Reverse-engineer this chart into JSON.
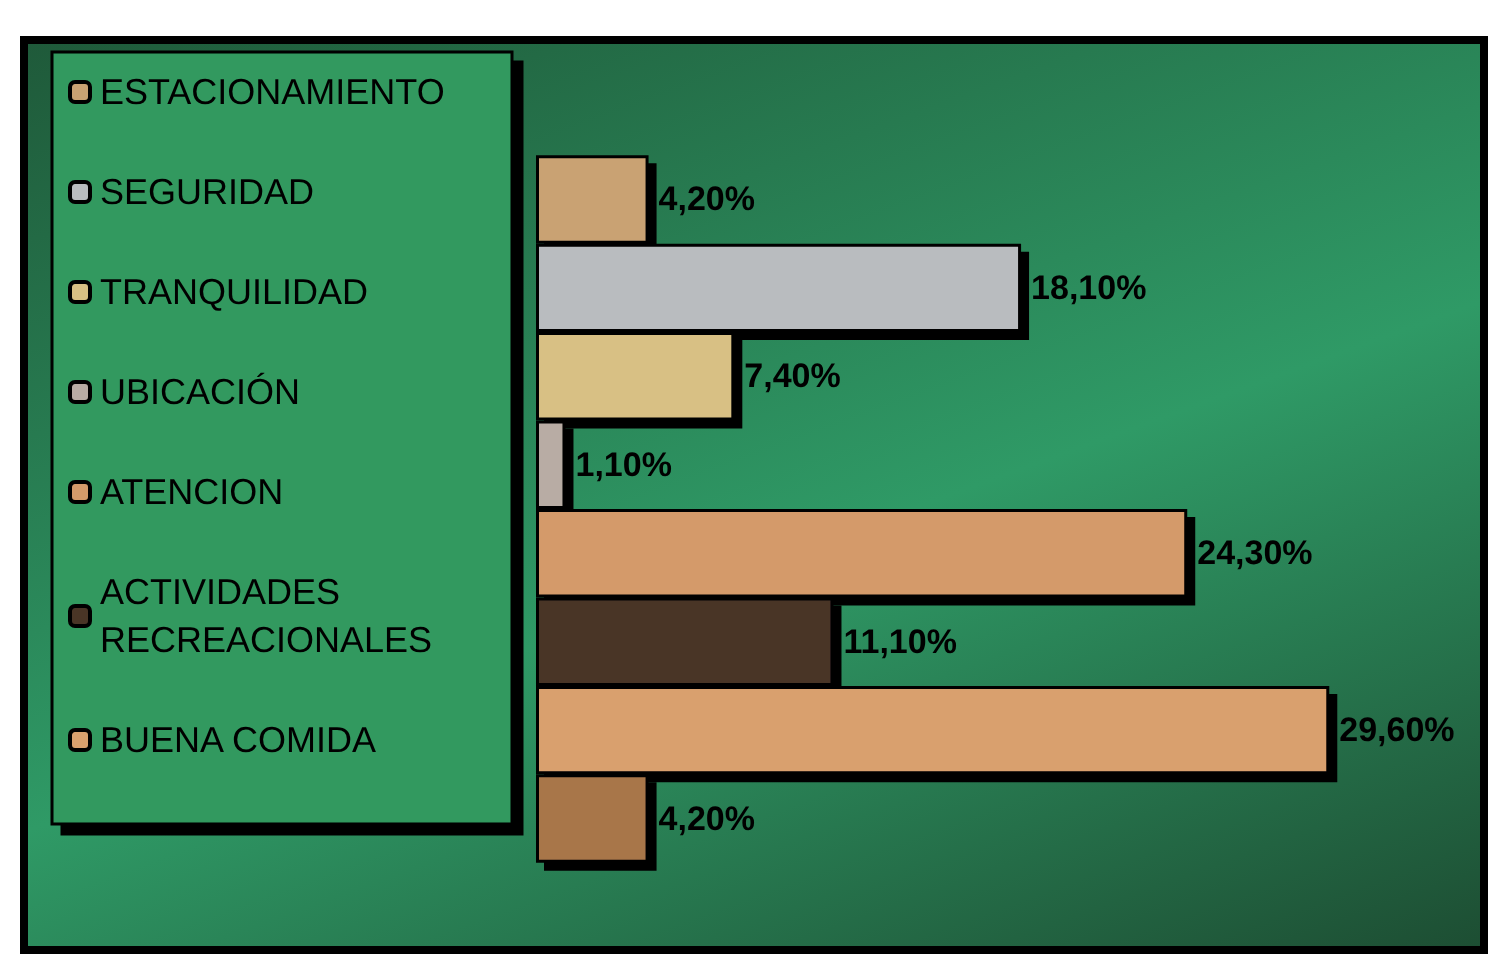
{
  "chart_data": {
    "type": "bar",
    "orientation": "horizontal",
    "legend": "left",
    "categories": [
      null
    ],
    "series": [
      {
        "name": "ESTACIONAMIENTO",
        "color": "#c9a273",
        "values": [
          4.2
        ],
        "value_labels": [
          "4,20%"
        ]
      },
      {
        "name": "SEGURIDAD",
        "color": "#b9bcbf",
        "values": [
          18.1
        ],
        "value_labels": [
          "18,10%"
        ]
      },
      {
        "name": "TRANQUILIDAD",
        "color": "#d8c084",
        "values": [
          7.4
        ],
        "value_labels": [
          "7,40%"
        ]
      },
      {
        "name": "UBICACIÓN",
        "color": "#b8aca4",
        "values": [
          1.1
        ],
        "value_labels": [
          "1,10%"
        ]
      },
      {
        "name": "ATENCION",
        "color": "#d49a6a",
        "values": [
          24.3
        ],
        "value_labels": [
          "24,30%"
        ]
      },
      {
        "name": "ACTIVIDADES RECREACIONALES",
        "color": "#4a3526",
        "values": [
          11.1
        ],
        "value_labels": [
          "11,10%"
        ]
      },
      {
        "name": "BUENA COMIDA",
        "color": "#d9a06e",
        "values": [
          29.6
        ],
        "value_labels": [
          "29,60%"
        ]
      },
      {
        "color": "#a8764a",
        "values": [
          4.2
        ],
        "value_labels": [
          "4,20%"
        ]
      }
    ]
  }
}
